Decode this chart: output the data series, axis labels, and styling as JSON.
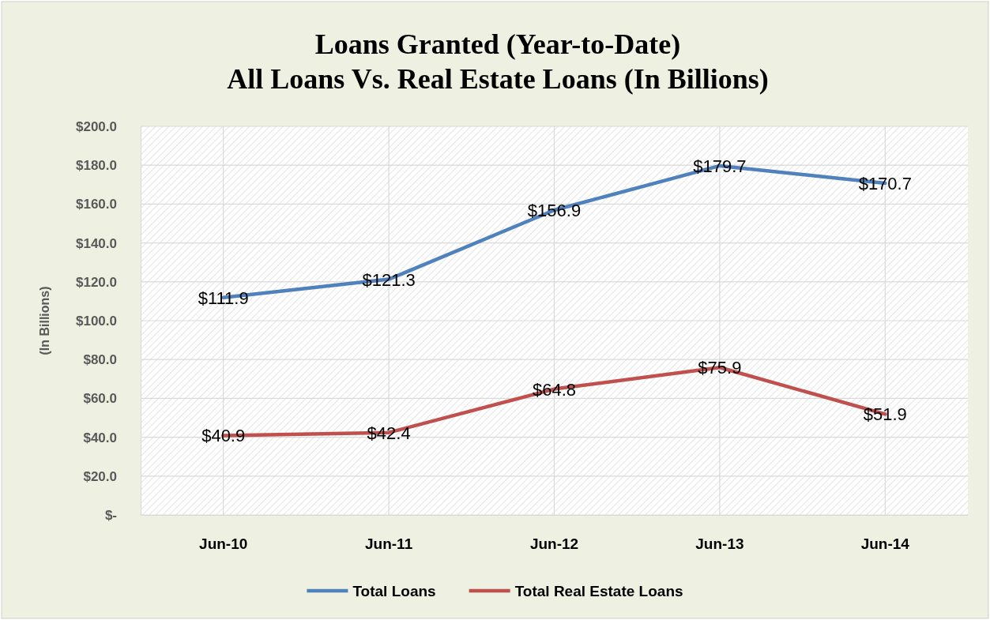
{
  "chart_data": {
    "type": "line",
    "title": "Loans Granted (Year-to-Date)\nAll Loans Vs. Real Estate Loans (In Billions)",
    "ylabel": "(In Billions)",
    "categories": [
      "Jun-10",
      "Jun-11",
      "Jun-12",
      "Jun-13",
      "Jun-14"
    ],
    "series": [
      {
        "name": "Total Loans",
        "color": "#4f81bd",
        "values": [
          111.9,
          121.3,
          156.9,
          179.7,
          170.7
        ],
        "value_labels": [
          "$111.9",
          "$121.3",
          "$156.9",
          "$179.7",
          "$170.7"
        ]
      },
      {
        "name": "Total Real Estate Loans",
        "color": "#c0504d",
        "values": [
          40.9,
          42.4,
          64.8,
          75.9,
          51.9
        ],
        "value_labels": [
          "$40.9",
          "$42.4",
          "$64.8",
          "$75.9",
          "$51.9"
        ]
      }
    ],
    "ylim": [
      0,
      200
    ],
    "yticks": [
      {
        "value": 0,
        "label": "$-"
      },
      {
        "value": 20,
        "label": "$20.0"
      },
      {
        "value": 40,
        "label": "$40.0"
      },
      {
        "value": 60,
        "label": "$60.0"
      },
      {
        "value": 80,
        "label": "$80.0"
      },
      {
        "value": 100,
        "label": "$100.0"
      },
      {
        "value": 120,
        "label": "$120.0"
      },
      {
        "value": 140,
        "label": "$140.0"
      },
      {
        "value": 160,
        "label": "$160.0"
      },
      {
        "value": 180,
        "label": "$180.0"
      },
      {
        "value": 200,
        "label": "$200.0"
      }
    ],
    "grid": true,
    "legend": "bottom",
    "marker": "none",
    "line_style": "solid"
  }
}
